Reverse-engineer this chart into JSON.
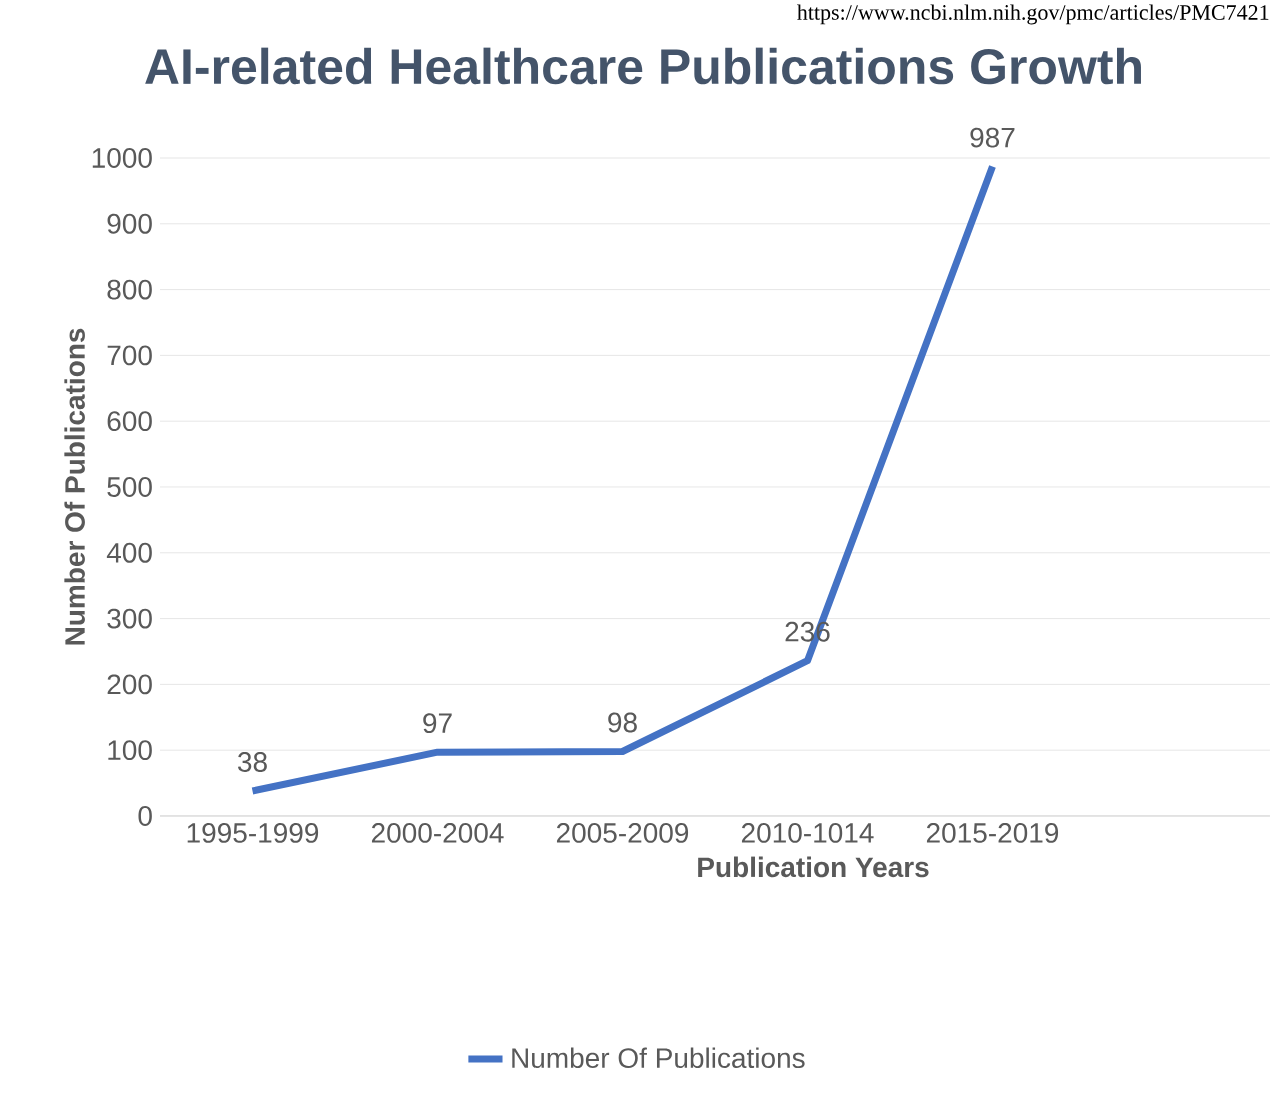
{
  "chart_data": {
    "type": "line",
    "title": "AI-related Healthcare Publications Growth",
    "xlabel": "Publication Years",
    "ylabel": "Number Of Publications",
    "annotations": [
      "https://www.ncbi.nlm.nih.gov/pmc/articles/PMC7421"
    ],
    "categories": [
      "1995-1999",
      "2000-2004",
      "2005-2009",
      "2010-1014",
      "2015-2019",
      null
    ],
    "series": [
      {
        "name": "Number Of Publications",
        "color": "#4472c4",
        "values": [
          38,
          97,
          98,
          236,
          987,
          null
        ]
      }
    ],
    "ylim": [
      0,
      1000
    ],
    "yticks": [
      0,
      100,
      200,
      300,
      400,
      500,
      600,
      700,
      800,
      900,
      1000
    ],
    "grid": "y",
    "legend": "bottom",
    "data_labels": true
  }
}
